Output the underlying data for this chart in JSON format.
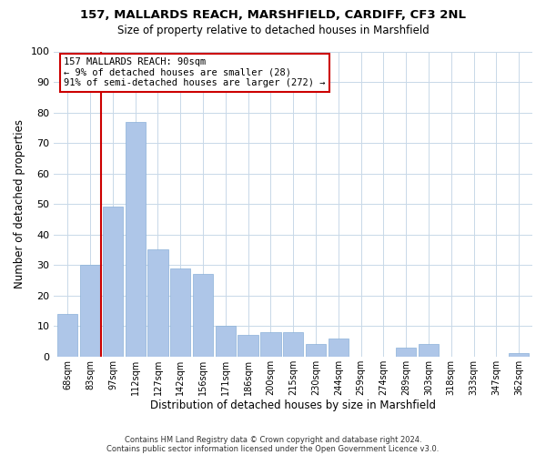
{
  "title": "157, MALLARDS REACH, MARSHFIELD, CARDIFF, CF3 2NL",
  "subtitle": "Size of property relative to detached houses in Marshfield",
  "xlabel": "Distribution of detached houses by size in Marshfield",
  "ylabel": "Number of detached properties",
  "footer1": "Contains HM Land Registry data © Crown copyright and database right 2024.",
  "footer2": "Contains public sector information licensed under the Open Government Licence v3.0.",
  "bar_labels": [
    "68sqm",
    "83sqm",
    "97sqm",
    "112sqm",
    "127sqm",
    "142sqm",
    "156sqm",
    "171sqm",
    "186sqm",
    "200sqm",
    "215sqm",
    "230sqm",
    "244sqm",
    "259sqm",
    "274sqm",
    "289sqm",
    "303sqm",
    "318sqm",
    "333sqm",
    "347sqm",
    "362sqm"
  ],
  "bar_values": [
    14,
    30,
    49,
    77,
    35,
    29,
    27,
    10,
    7,
    8,
    8,
    4,
    6,
    0,
    0,
    3,
    4,
    0,
    0,
    0,
    1
  ],
  "bar_color": "#aec6e8",
  "bar_edge_color": "#8ab0d8",
  "vline_color": "#cc0000",
  "annotation_title": "157 MALLARDS REACH: 90sqm",
  "annotation_line1": "← 9% of detached houses are smaller (28)",
  "annotation_line2": "91% of semi-detached houses are larger (272) →",
  "annotation_box_edge": "#cc0000",
  "ylim": [
    0,
    100
  ],
  "yticks": [
    0,
    10,
    20,
    30,
    40,
    50,
    60,
    70,
    80,
    90,
    100
  ],
  "background_color": "#ffffff",
  "grid_color": "#c8d8e8"
}
